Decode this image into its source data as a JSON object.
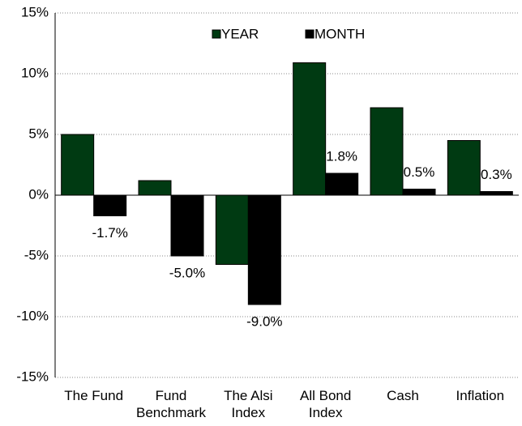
{
  "chart_data": {
    "type": "bar",
    "categories": [
      "The Fund",
      "Fund\nBenchmark",
      "The Alsi\nIndex",
      "All Bond\nIndex",
      "Cash",
      "Inflation"
    ],
    "series": [
      {
        "name": "YEAR",
        "color": "#003a12",
        "values": [
          5.0,
          1.2,
          -5.7,
          10.9,
          7.2,
          4.5
        ]
      },
      {
        "name": "MONTH",
        "color": "#000000",
        "values": [
          -1.7,
          -5.0,
          -9.0,
          1.8,
          0.5,
          0.3
        ],
        "value_labels": [
          "-1.7%",
          "-5.0%",
          "-9.0%",
          "1.8%",
          "0.5%",
          "0.3%"
        ]
      }
    ],
    "ylim": [
      -15,
      15
    ],
    "yticks": [
      {
        "value": -15,
        "label": "-15%"
      },
      {
        "value": -10,
        "label": "-10%"
      },
      {
        "value": -5,
        "label": "-5%"
      },
      {
        "value": 0,
        "label": "0%"
      },
      {
        "value": 5,
        "label": "5%"
      },
      {
        "value": 10,
        "label": "10%"
      },
      {
        "value": 15,
        "label": "15%"
      }
    ],
    "grid": true,
    "legend": "top"
  }
}
